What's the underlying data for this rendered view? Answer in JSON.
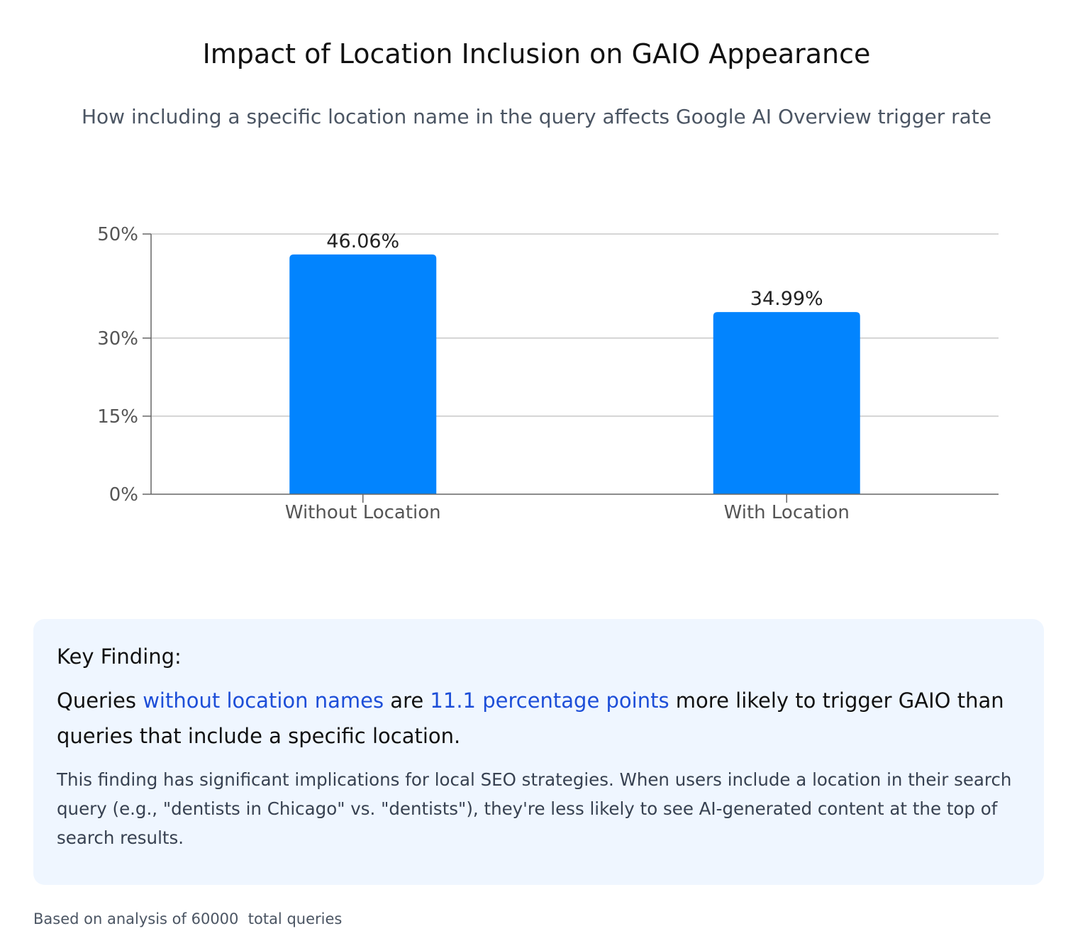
{
  "title": "Impact of Location Inclusion on GAIO Appearance",
  "subtitle": "How including a specific location name in the query affects Google AI Overview trigger rate",
  "chart_data": {
    "type": "bar",
    "categories": [
      "Without Location",
      "With Location"
    ],
    "values": [
      46.06,
      34.99
    ],
    "data_labels": [
      "46.06%",
      "34.99%"
    ],
    "y_ticks": [
      0,
      15,
      30,
      50
    ],
    "y_tick_labels": [
      "0%",
      "15%",
      "30%",
      "50%"
    ],
    "ylim": [
      0,
      50
    ],
    "grid": true,
    "legend": "none",
    "bar_color": "#0284fe"
  },
  "finding": {
    "heading": "Key Finding:",
    "main_1": "Queries ",
    "main_hl_1": "without location names",
    "main_2": " are ",
    "main_hl_2": "11.1 percentage points",
    "main_3": " more likely to trigger GAIO than queries that include a specific location.",
    "detail": "This finding has significant implications for local SEO strategies. When users include a location in their search query (e.g., \"dentists in Chicago\" vs. \"dentists\"), they're less likely to see AI-generated content at the top of search results."
  },
  "footnote": "Based on analysis of 60000  total queries",
  "colors": {
    "highlight": "#1d4ed8",
    "panel": "#eff6ff"
  }
}
